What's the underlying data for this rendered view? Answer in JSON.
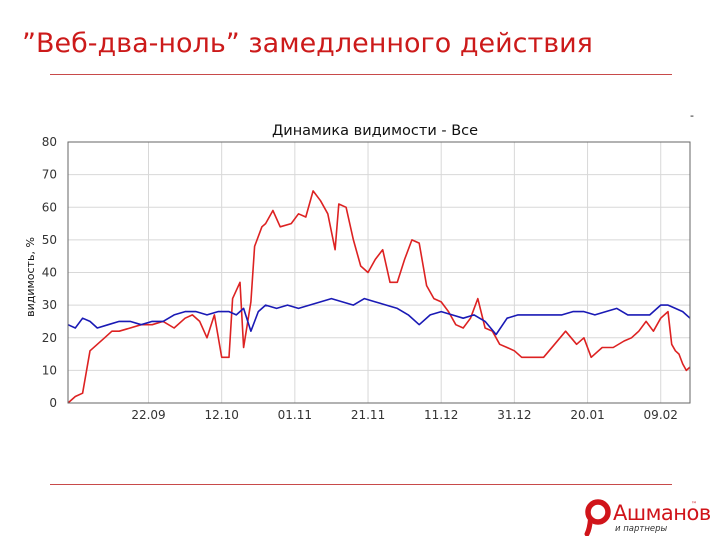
{
  "slide": {
    "title": "”Веб-два-ноль” замедленного действия"
  },
  "logo": {
    "name": "Ашманов",
    "subtitle": "и партнеры",
    "brand_color": "#d0141a"
  },
  "colors": {
    "title": "#cc1a1a",
    "rule": "#c84a4a",
    "series_red": "#dd2222",
    "series_blue": "#1a1ab5",
    "grid": "#d8d8d8"
  },
  "chart_data": {
    "type": "line",
    "title": "Динамика видимости - Все",
    "ylabel": "видимость, %",
    "xlabel": "",
    "ylim": [
      0,
      80
    ],
    "yticks": [
      0,
      10,
      20,
      30,
      40,
      50,
      60,
      70,
      80
    ],
    "xlim": [
      "2008-08-31",
      "2009-02-17"
    ],
    "xticks": [
      {
        "date": "2008-09-22",
        "label": "22.09"
      },
      {
        "date": "2008-10-12",
        "label": "12.10"
      },
      {
        "date": "2008-11-01",
        "label": "01.11"
      },
      {
        "date": "2008-11-21",
        "label": "21.11"
      },
      {
        "date": "2008-12-11",
        "label": "11.12"
      },
      {
        "date": "2008-12-31",
        "label": "31.12"
      },
      {
        "date": "2009-01-20",
        "label": "20.01"
      },
      {
        "date": "2009-02-09",
        "label": "09.02"
      }
    ],
    "grid": true,
    "legend": "none",
    "series": [
      {
        "color": "#dd2222",
        "x": [
          "2008-08-31",
          "2008-09-02",
          "2008-09-04",
          "2008-09-06",
          "2008-09-08",
          "2008-09-10",
          "2008-09-12",
          "2008-09-14",
          "2008-09-17",
          "2008-09-20",
          "2008-09-23",
          "2008-09-26",
          "2008-09-29",
          "2008-10-02",
          "2008-10-04",
          "2008-10-06",
          "2008-10-08",
          "2008-10-10",
          "2008-10-12",
          "2008-10-14",
          "2008-10-15",
          "2008-10-17",
          "2008-10-18",
          "2008-10-20",
          "2008-10-21",
          "2008-10-23",
          "2008-10-24",
          "2008-10-26",
          "2008-10-28",
          "2008-10-31",
          "2008-11-02",
          "2008-11-04",
          "2008-11-06",
          "2008-11-08",
          "2008-11-10",
          "2008-11-12",
          "2008-11-13",
          "2008-11-15",
          "2008-11-17",
          "2008-11-19",
          "2008-11-21",
          "2008-11-23",
          "2008-11-25",
          "2008-11-27",
          "2008-11-29",
          "2008-12-01",
          "2008-12-03",
          "2008-12-05",
          "2008-12-07",
          "2008-12-09",
          "2008-12-11",
          "2008-12-13",
          "2008-12-15",
          "2008-12-17",
          "2008-12-19",
          "2008-12-21",
          "2008-12-23",
          "2008-12-25",
          "2008-12-27",
          "2008-12-29",
          "2008-12-31",
          "2009-01-02",
          "2009-01-05",
          "2009-01-08",
          "2009-01-11",
          "2009-01-14",
          "2009-01-17",
          "2009-01-19",
          "2009-01-21",
          "2009-01-24",
          "2009-01-27",
          "2009-01-30",
          "2009-02-01",
          "2009-02-03",
          "2009-02-05",
          "2009-02-07",
          "2009-02-09",
          "2009-02-11",
          "2009-02-12",
          "2009-02-13",
          "2009-02-14",
          "2009-02-15",
          "2009-02-16",
          "2009-02-17"
        ],
        "values": [
          0,
          2,
          3,
          16,
          18,
          20,
          22,
          22,
          23,
          24,
          24,
          25,
          23,
          26,
          27,
          25,
          20,
          27,
          14,
          14,
          32,
          37,
          17,
          31,
          48,
          54,
          55,
          59,
          54,
          55,
          58,
          57,
          65,
          62,
          58,
          47,
          61,
          60,
          50,
          42,
          40,
          44,
          47,
          37,
          37,
          44,
          50,
          49,
          36,
          32,
          31,
          28,
          24,
          23,
          26,
          32,
          23,
          22,
          18,
          17,
          16,
          14,
          14,
          14,
          18,
          22,
          18,
          20,
          14,
          17,
          17,
          19,
          20,
          22,
          25,
          22,
          26,
          28,
          18,
          16,
          15,
          12,
          10,
          11
        ]
      },
      {
        "color": "#1a1ab5",
        "x": [
          "2008-08-31",
          "2008-09-02",
          "2008-09-04",
          "2008-09-06",
          "2008-09-08",
          "2008-09-11",
          "2008-09-14",
          "2008-09-17",
          "2008-09-20",
          "2008-09-23",
          "2008-09-26",
          "2008-09-29",
          "2008-10-02",
          "2008-10-05",
          "2008-10-08",
          "2008-10-11",
          "2008-10-14",
          "2008-10-16",
          "2008-10-18",
          "2008-10-20",
          "2008-10-22",
          "2008-10-24",
          "2008-10-27",
          "2008-10-30",
          "2008-11-02",
          "2008-11-05",
          "2008-11-08",
          "2008-11-11",
          "2008-11-14",
          "2008-11-17",
          "2008-11-20",
          "2008-11-23",
          "2008-11-26",
          "2008-11-29",
          "2008-12-02",
          "2008-12-05",
          "2008-12-08",
          "2008-12-11",
          "2008-12-14",
          "2008-12-17",
          "2008-12-20",
          "2008-12-23",
          "2008-12-26",
          "2008-12-29",
          "2009-01-01",
          "2009-01-04",
          "2009-01-07",
          "2009-01-10",
          "2009-01-13",
          "2009-01-16",
          "2009-01-19",
          "2009-01-22",
          "2009-01-25",
          "2009-01-28",
          "2009-01-31",
          "2009-02-03",
          "2009-02-06",
          "2009-02-09",
          "2009-02-11",
          "2009-02-13",
          "2009-02-15",
          "2009-02-17"
        ],
        "values": [
          24,
          23,
          26,
          25,
          23,
          24,
          25,
          25,
          24,
          25,
          25,
          27,
          28,
          28,
          27,
          28,
          28,
          27,
          29,
          22,
          28,
          30,
          29,
          30,
          29,
          30,
          31,
          32,
          31,
          30,
          32,
          31,
          30,
          29,
          27,
          24,
          27,
          28,
          27,
          26,
          27,
          25,
          21,
          26,
          27,
          27,
          27,
          27,
          27,
          28,
          28,
          27,
          28,
          29,
          27,
          27,
          27,
          30,
          30,
          29,
          28,
          26
        ]
      }
    ]
  }
}
